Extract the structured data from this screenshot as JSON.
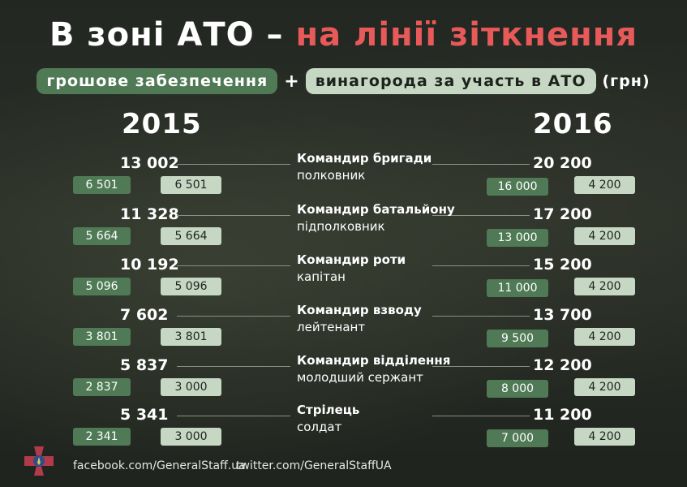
{
  "title": {
    "part1": "В зоні АТО –",
    "part2": "на лінії зіткнення"
  },
  "subtitle": {
    "pill1": "грошове забезпечення",
    "plus": "+",
    "pill2": "винагорода за участь в АТО",
    "unit": "(грн)"
  },
  "years": {
    "left": "2015",
    "right": "2016"
  },
  "rows": [
    {
      "title": "Командир бригади",
      "rank": "полковник",
      "y2015": {
        "total": "13 002",
        "base": "6 501",
        "reward": "6 501"
      },
      "y2016": {
        "total": "20 200",
        "base": "16 000",
        "reward": "4 200"
      }
    },
    {
      "title": "Командир батальйону",
      "rank": "підполковник",
      "y2015": {
        "total": "11 328",
        "base": "5 664",
        "reward": "5 664"
      },
      "y2016": {
        "total": "17 200",
        "base": "13 000",
        "reward": "4 200"
      }
    },
    {
      "title": "Командир роти",
      "rank": "капітан",
      "y2015": {
        "total": "10 192",
        "base": "5 096",
        "reward": "5 096"
      },
      "y2016": {
        "total": "15 200",
        "base": "11 000",
        "reward": "4 200"
      }
    },
    {
      "title": "Командир взводу",
      "rank": "лейтенант",
      "y2015": {
        "total": "7 602",
        "base": "3 801",
        "reward": "3 801"
      },
      "y2016": {
        "total": "13 700",
        "base": "9 500",
        "reward": "4 200"
      }
    },
    {
      "title": "Командир відділення",
      "rank": "молодший сержант",
      "y2015": {
        "total": "5 837",
        "base": "2 837",
        "reward": "3 000"
      },
      "y2016": {
        "total": "12 200",
        "base": "8 000",
        "reward": "4 200"
      }
    },
    {
      "title": "Стрілець",
      "rank": "солдат",
      "y2015": {
        "total": "5 341",
        "base": "2 341",
        "reward": "3 000"
      },
      "y2016": {
        "total": "11 200",
        "base": "7 000",
        "reward": "4 200"
      }
    }
  ],
  "footer": {
    "facebook": "facebook.com/GeneralStaff.ua",
    "twitter": "twitter.com/GeneralStaffUA"
  },
  "colors": {
    "dark_box": "#4f7a55",
    "light_box": "#c6d8c4",
    "accent_red": "#e85a5a",
    "background": "#1e221d"
  },
  "icons": {
    "emblem": "general-staff-emblem"
  }
}
